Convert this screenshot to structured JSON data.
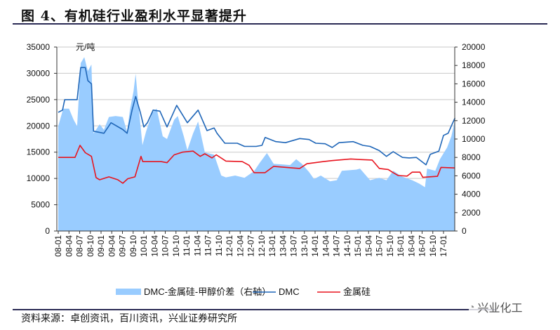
{
  "title": "图 4、有机硅行业盈利水平显著提升",
  "source": "资料来源：卓创资讯，百川资讯，兴业证券研究所",
  "watermark": "兴业化工",
  "chart_data": {
    "type": "line+area",
    "title": "图 4、有机硅行业盈利水平显著提升",
    "ylabel": "元/吨",
    "x_unit": "months since 2008-01",
    "x_range": [
      0,
      111.2
    ],
    "categories": [
      "08-01",
      "08-04",
      "08-07",
      "08-10",
      "09-01",
      "09-04",
      "09-07",
      "09-10",
      "10-01",
      "10-04",
      "10-07",
      "10-10",
      "11-01",
      "11-04",
      "11-07",
      "11-10",
      "12-01",
      "12-04",
      "12-07",
      "12-10",
      "13-01",
      "13-04",
      "13-07",
      "13-10",
      "14-01",
      "14-04",
      "14-07",
      "14-10",
      "15-01",
      "15-04",
      "15-07",
      "15-10",
      "16-01",
      "16-04",
      "16-07",
      "16-10",
      "17-01"
    ],
    "left_axis": {
      "ylim": [
        0,
        35000
      ],
      "ticks": [
        "0",
        "5000",
        "10000",
        "15000",
        "20000",
        "25000",
        "30000",
        "35000"
      ]
    },
    "right_axis": {
      "ylim": [
        0,
        20000
      ],
      "ticks": [
        "0",
        "2000",
        "4000",
        "6000",
        "8000",
        "10000",
        "12000",
        "14000",
        "16000",
        "18000",
        "20000"
      ]
    },
    "grid": true,
    "legend_position": "bottom",
    "colors": {
      "spread": "#99ccff",
      "dmc": "#1f66b8",
      "silicon": "#e8141e",
      "grid": "#c8c8c8"
    },
    "series": [
      {
        "name": "DMC-金属硅-甲醇价差（右轴）",
        "axis": "right",
        "kind": "area",
        "points": [
          [
            0,
            11400
          ],
          [
            1.4,
            13300
          ],
          [
            3,
            13300
          ],
          [
            4.3,
            12100
          ],
          [
            5.3,
            11400
          ],
          [
            6.3,
            18250
          ],
          [
            7.3,
            18900
          ],
          [
            8.3,
            17400
          ],
          [
            9.3,
            18100
          ],
          [
            9.9,
            10600
          ],
          [
            11.6,
            11600
          ],
          [
            12.8,
            11000
          ],
          [
            14.2,
            12400
          ],
          [
            16.1,
            12500
          ],
          [
            18.1,
            12400
          ],
          [
            19.3,
            10800
          ],
          [
            20.1,
            13200
          ],
          [
            21.1,
            15200
          ],
          [
            21.7,
            17100
          ],
          [
            22.4,
            14000
          ],
          [
            23.6,
            9330
          ],
          [
            24.6,
            10800
          ],
          [
            26.4,
            12900
          ],
          [
            27.6,
            13300
          ],
          [
            29.3,
            10300
          ],
          [
            30.5,
            10000
          ],
          [
            32.5,
            12100
          ],
          [
            33.5,
            12500
          ],
          [
            35.2,
            10300
          ],
          [
            36.2,
            8800
          ],
          [
            37.8,
            10600
          ],
          [
            39.2,
            11900
          ],
          [
            41.1,
            8550
          ],
          [
            43.7,
            8300
          ],
          [
            45.7,
            6030
          ],
          [
            47,
            5830
          ],
          [
            49.6,
            6030
          ],
          [
            52.2,
            5780
          ],
          [
            54.9,
            6500
          ],
          [
            56.5,
            7430
          ],
          [
            58.5,
            8470
          ],
          [
            60.4,
            7300
          ],
          [
            62.4,
            7250
          ],
          [
            65,
            7170
          ],
          [
            66.7,
            7810
          ],
          [
            68.3,
            7300
          ],
          [
            70.3,
            6410
          ],
          [
            71.7,
            5650
          ],
          [
            73.6,
            6030
          ],
          [
            76.2,
            5400
          ],
          [
            78.1,
            5530
          ],
          [
            79.5,
            6540
          ],
          [
            83.5,
            6670
          ],
          [
            84.6,
            6790
          ],
          [
            87.4,
            5530
          ],
          [
            90,
            5780
          ],
          [
            92,
            5530
          ],
          [
            93.9,
            6540
          ],
          [
            96.5,
            5900
          ],
          [
            99.2,
            5530
          ],
          [
            101.2,
            5150
          ],
          [
            102.8,
            4760
          ],
          [
            103.4,
            6790
          ],
          [
            105.7,
            6540
          ],
          [
            107,
            7810
          ],
          [
            109,
            9080
          ],
          [
            110.2,
            10300
          ],
          [
            111.2,
            12100
          ]
        ]
      },
      {
        "name": "DMC",
        "axis": "left",
        "kind": "line",
        "points": [
          [
            0,
            22580
          ],
          [
            1.2,
            23000
          ],
          [
            1.8,
            25000
          ],
          [
            5.3,
            25000
          ],
          [
            6.3,
            31100
          ],
          [
            7.6,
            31100
          ],
          [
            8.3,
            28600
          ],
          [
            9.3,
            28000
          ],
          [
            9.9,
            19000
          ],
          [
            12.8,
            18600
          ],
          [
            14.8,
            20600
          ],
          [
            18.1,
            19300
          ],
          [
            19.3,
            18600
          ],
          [
            20.7,
            23000
          ],
          [
            21.7,
            25600
          ],
          [
            23,
            22600
          ],
          [
            24,
            19800
          ],
          [
            25,
            20600
          ],
          [
            26.6,
            23000
          ],
          [
            28.5,
            22800
          ],
          [
            30.5,
            19800
          ],
          [
            33.2,
            23900
          ],
          [
            36.2,
            20600
          ],
          [
            39.2,
            23000
          ],
          [
            41.7,
            19100
          ],
          [
            43.7,
            19600
          ],
          [
            44.5,
            18600
          ],
          [
            46.7,
            16700
          ],
          [
            50.2,
            16700
          ],
          [
            52.2,
            16100
          ],
          [
            55.5,
            16100
          ],
          [
            57.1,
            16300
          ],
          [
            58,
            17800
          ],
          [
            61,
            17000
          ],
          [
            63.7,
            16800
          ],
          [
            67.7,
            17600
          ],
          [
            70.3,
            17400
          ],
          [
            72.2,
            16700
          ],
          [
            74.8,
            16600
          ],
          [
            76.8,
            15900
          ],
          [
            78.7,
            16800
          ],
          [
            82.7,
            17000
          ],
          [
            85.4,
            16300
          ],
          [
            87.4,
            16100
          ],
          [
            90,
            15300
          ],
          [
            92,
            14200
          ],
          [
            93.9,
            15100
          ],
          [
            96.5,
            14000
          ],
          [
            98.4,
            13900
          ],
          [
            100.4,
            14000
          ],
          [
            103.1,
            12600
          ],
          [
            104.3,
            14600
          ],
          [
            106.7,
            15200
          ],
          [
            108,
            18200
          ],
          [
            109.3,
            18600
          ],
          [
            110.2,
            20000
          ],
          [
            111.2,
            21500
          ]
        ]
      },
      {
        "name": "金属硅",
        "axis": "left",
        "kind": "line",
        "points": [
          [
            0,
            14000
          ],
          [
            4.7,
            14000
          ],
          [
            6.1,
            16300
          ],
          [
            7.6,
            14900
          ],
          [
            9.3,
            14200
          ],
          [
            10.6,
            10150
          ],
          [
            11.6,
            9750
          ],
          [
            14.2,
            10300
          ],
          [
            16.7,
            9750
          ],
          [
            18.1,
            9080
          ],
          [
            19.5,
            9950
          ],
          [
            21.5,
            10300
          ],
          [
            23.2,
            14200
          ],
          [
            23.7,
            13200
          ],
          [
            28.9,
            13200
          ],
          [
            30.5,
            13000
          ],
          [
            32.5,
            14500
          ],
          [
            34.8,
            15000
          ],
          [
            37.8,
            15200
          ],
          [
            39.8,
            14200
          ],
          [
            41.1,
            14700
          ],
          [
            43.1,
            13900
          ],
          [
            44.3,
            14500
          ],
          [
            47,
            13300
          ],
          [
            51.6,
            13200
          ],
          [
            53.5,
            12500
          ],
          [
            54.9,
            11100
          ],
          [
            58,
            11100
          ],
          [
            60.4,
            12300
          ],
          [
            65.7,
            12000
          ],
          [
            67.7,
            11900
          ],
          [
            69.7,
            12800
          ],
          [
            74.2,
            13200
          ],
          [
            76.8,
            13400
          ],
          [
            82,
            13700
          ],
          [
            84.6,
            13600
          ],
          [
            88,
            13500
          ],
          [
            90,
            11900
          ],
          [
            92.5,
            11700
          ],
          [
            93.9,
            11100
          ],
          [
            95.3,
            10550
          ],
          [
            97.8,
            10450
          ],
          [
            99.2,
            11200
          ],
          [
            101.4,
            11200
          ],
          [
            102.2,
            10200
          ],
          [
            106.3,
            10400
          ],
          [
            107.3,
            12100
          ],
          [
            111.2,
            12000
          ]
        ]
      }
    ]
  }
}
